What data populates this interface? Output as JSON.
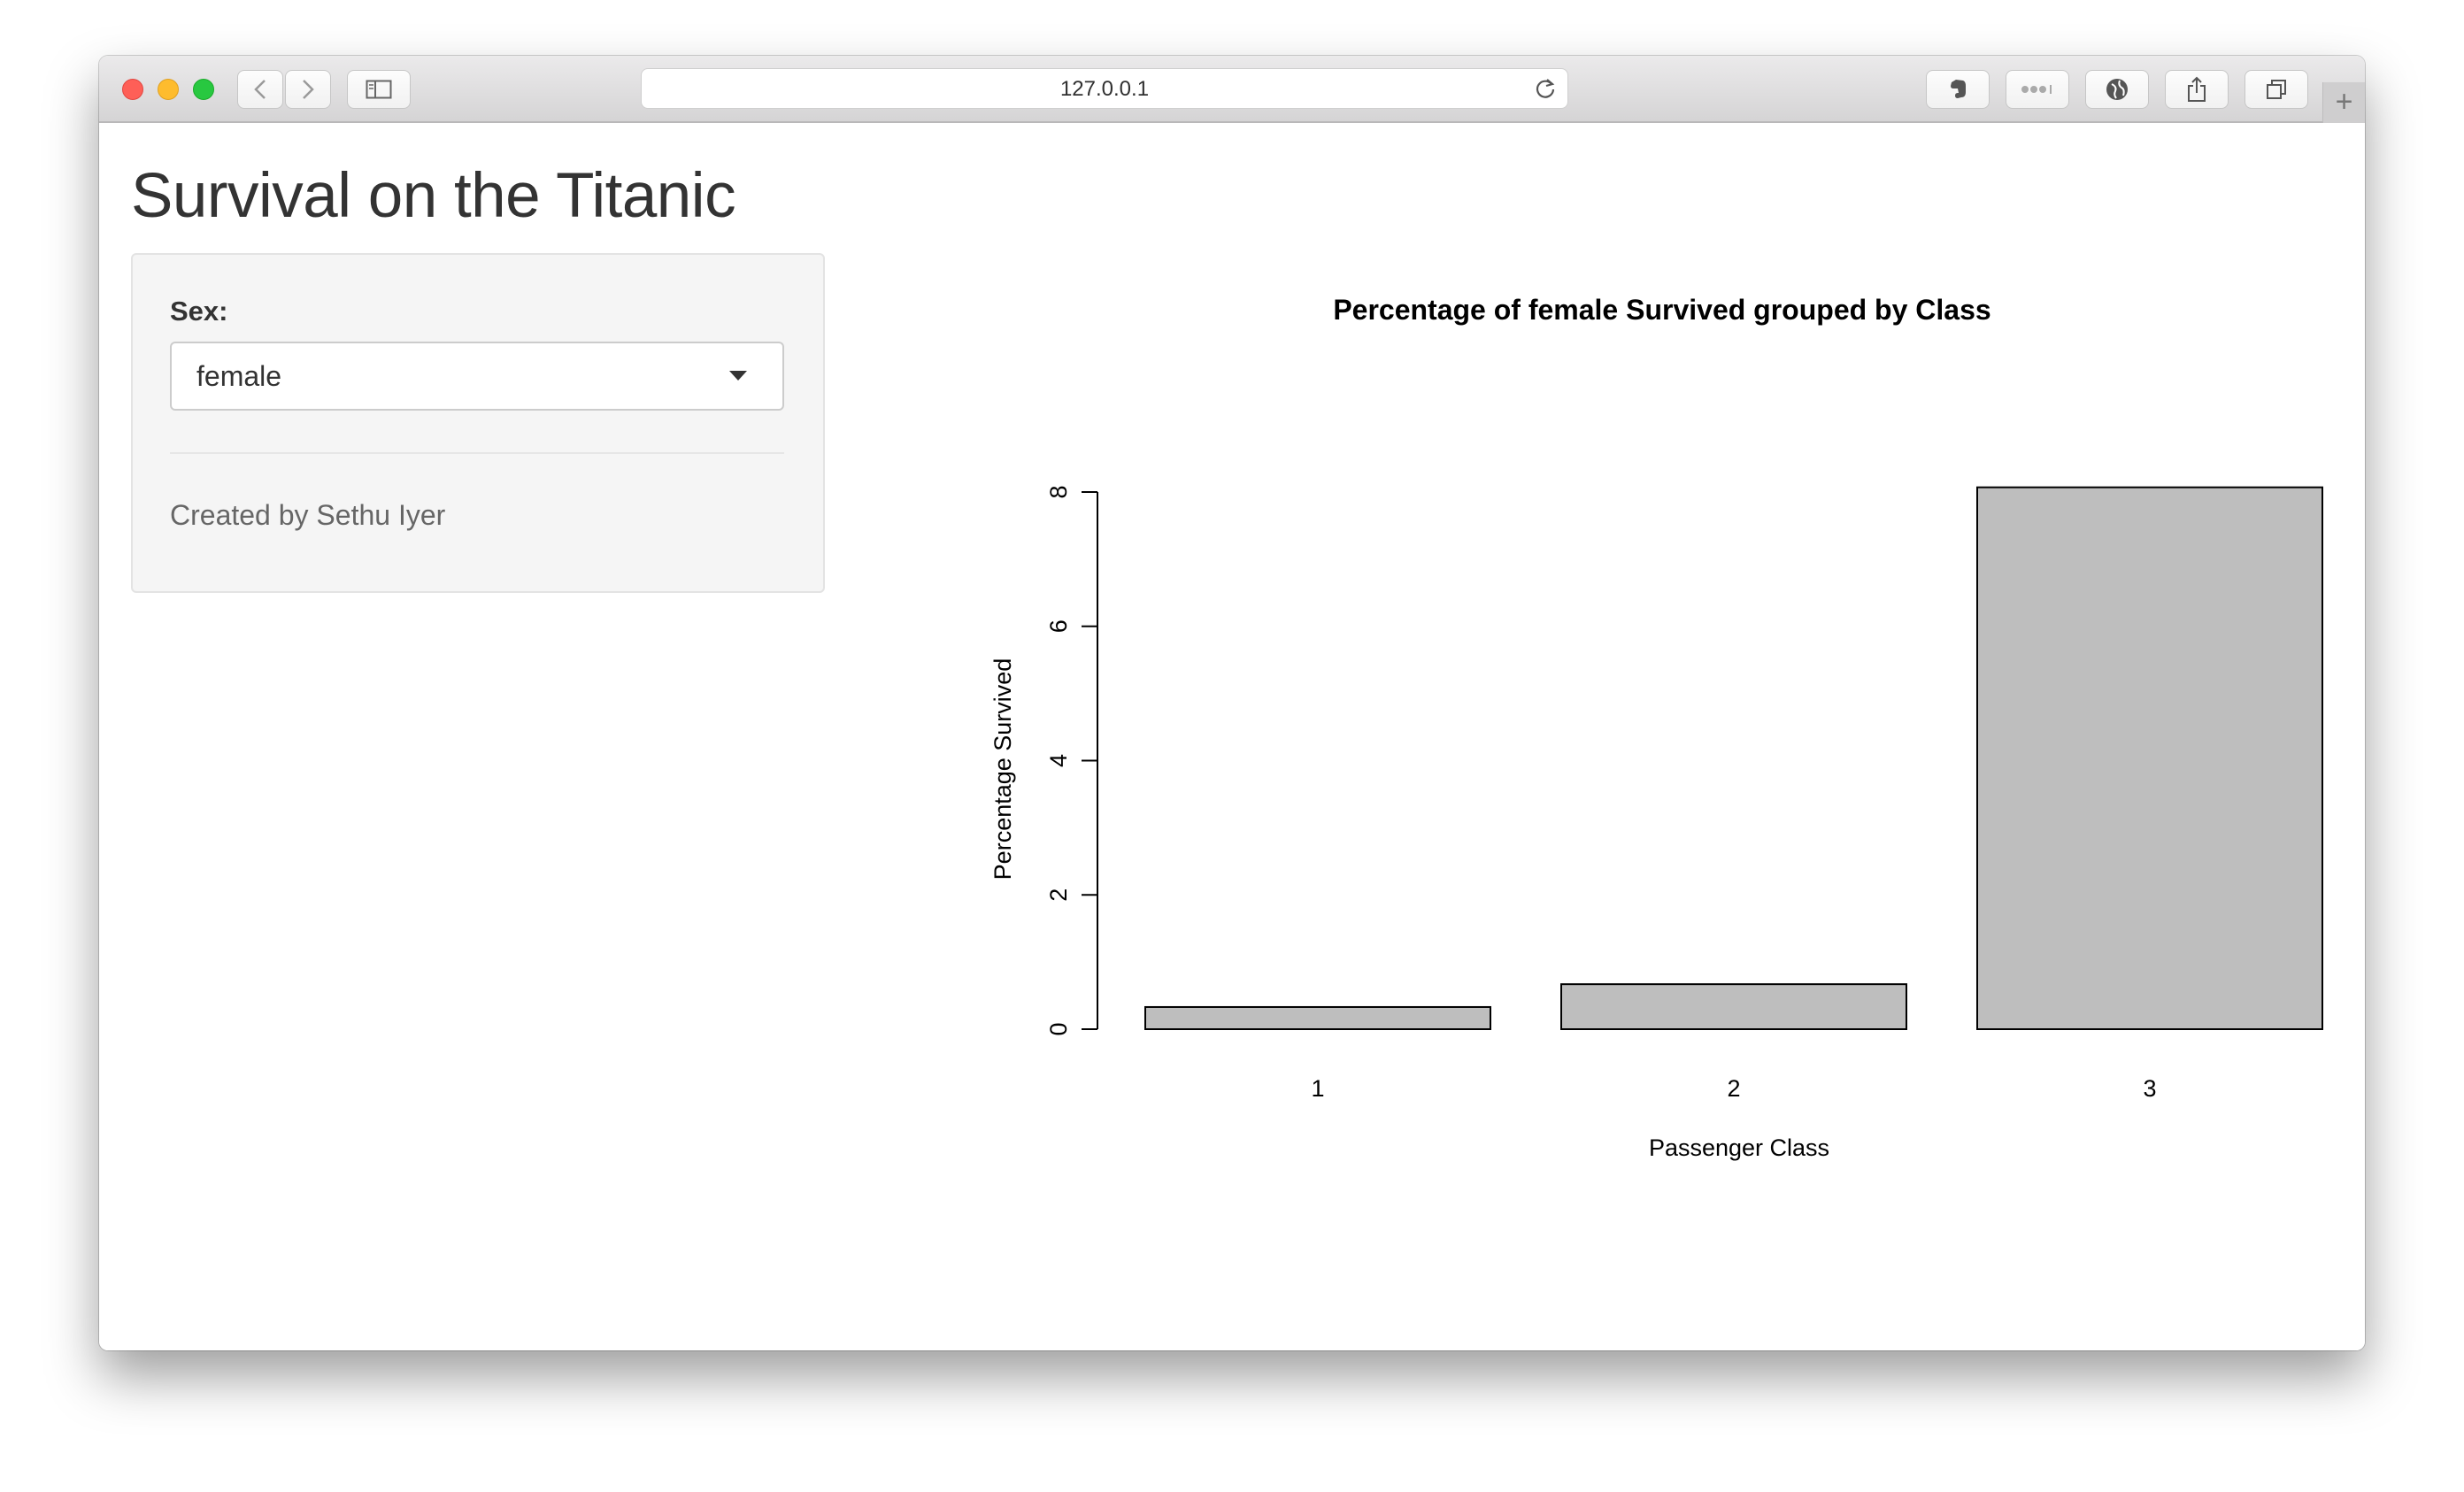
{
  "browser": {
    "url": "127.0.0.1",
    "icons": {
      "back": "chevron-left-icon",
      "forward": "chevron-right-icon",
      "sidebar": "sidebar-icon",
      "reload": "reload-icon",
      "extension": "evernote-icon",
      "more": "more-dots-icon",
      "profile": "globe-icon",
      "share": "share-icon",
      "tabs": "tabs-icon",
      "new_tab": "plus-icon"
    },
    "new_tab_glyph": "+"
  },
  "app": {
    "title": "Survival on the Titanic",
    "sidebar": {
      "sex_label": "Sex:",
      "sex_value": "female",
      "credit": "Created by Sethu Iyer"
    }
  },
  "chart_data": {
    "type": "bar",
    "title": "Percentage of  female Survived grouped by Class",
    "xlabel": "Passenger Class",
    "ylabel": "Percentage Survived",
    "categories": [
      "1",
      "2",
      "3"
    ],
    "values": [
      0.33,
      0.67,
      8.07
    ],
    "yticks": [
      0,
      2,
      4,
      6,
      8
    ],
    "ylim": [
      0,
      8.5
    ],
    "bar_color": "#bebebe",
    "grid": false
  }
}
